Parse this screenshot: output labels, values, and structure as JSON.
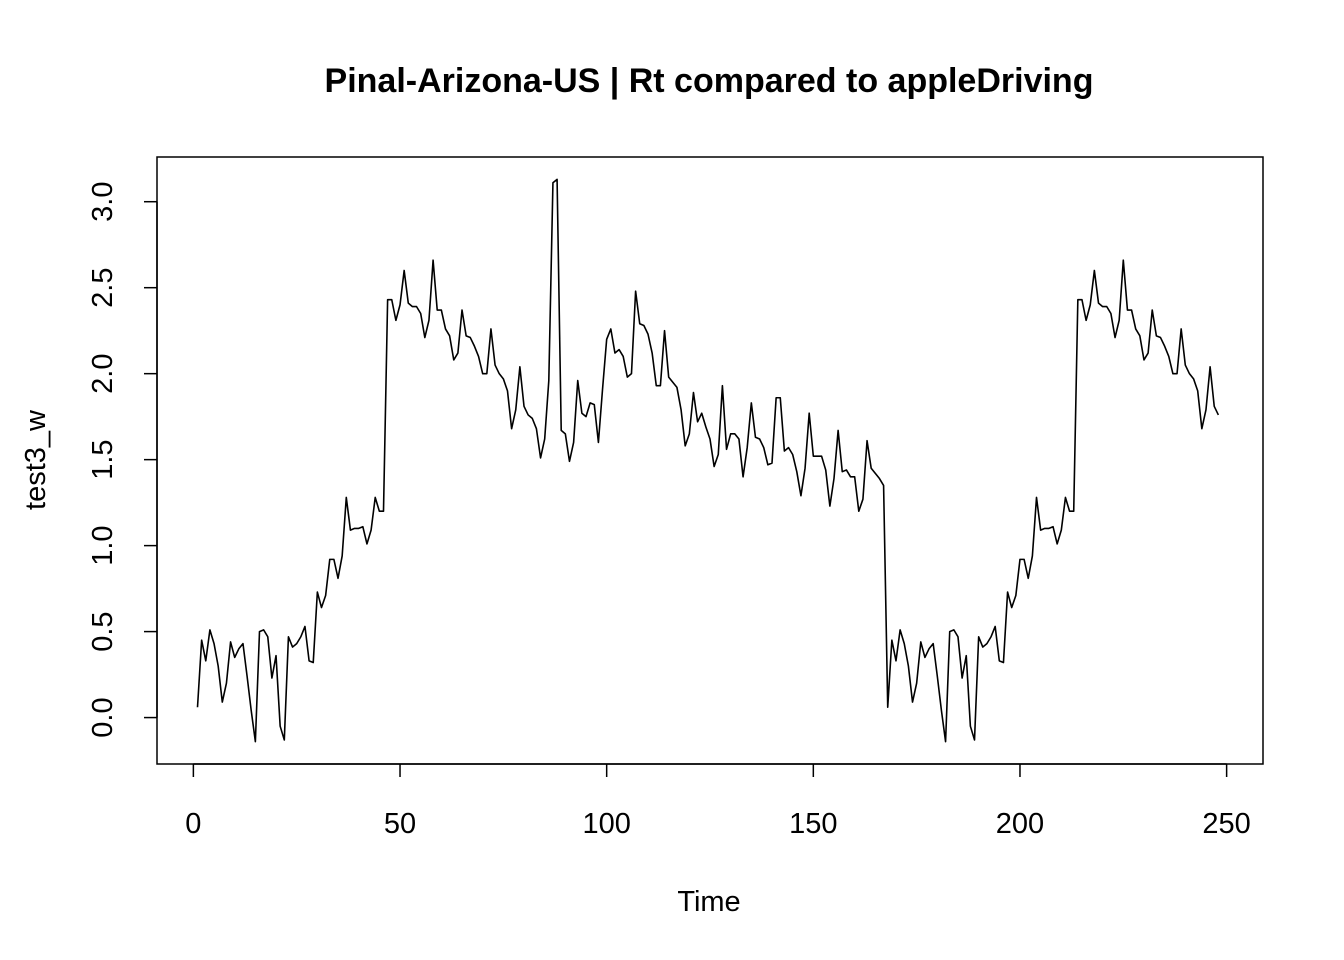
{
  "chart_data": {
    "type": "line",
    "title": "Pinal-Arizona-US | Rt compared to appleDriving",
    "xlabel": "Time",
    "ylabel": "test3_w",
    "xlim": [
      -8.8,
      258.8
    ],
    "ylim": [
      -0.27,
      3.26
    ],
    "xticks": [
      0,
      50,
      100,
      150,
      200,
      250
    ],
    "yticks": [
      0.0,
      0.5,
      1.0,
      1.5,
      2.0,
      2.5,
      3.0
    ],
    "xtick_labels": [
      "0",
      "50",
      "100",
      "150",
      "200",
      "250"
    ],
    "ytick_labels": [
      "0.0",
      "0.5",
      "1.0",
      "1.5",
      "2.0",
      "2.5",
      "3.0"
    ],
    "grid": false,
    "legend": "none",
    "color": "#000000",
    "series": [
      {
        "x": [
          1,
          2,
          3,
          4,
          5,
          6,
          7,
          8,
          9,
          10,
          11,
          12,
          13,
          14,
          15,
          16,
          17,
          18,
          19,
          20,
          21,
          22,
          23,
          24,
          25,
          26,
          27,
          28,
          29,
          30,
          31,
          32,
          33,
          34,
          35,
          36,
          37,
          38,
          39,
          40,
          41,
          42,
          43,
          44,
          45,
          46,
          47,
          48,
          49,
          50,
          51,
          52,
          53,
          54,
          55,
          56,
          57,
          58,
          59,
          60,
          61,
          62,
          63,
          64,
          65,
          66,
          67,
          68,
          69,
          70,
          71,
          72,
          73,
          74,
          75,
          76,
          77,
          78,
          79,
          80,
          81,
          82,
          83,
          84,
          85,
          86,
          87,
          88,
          89,
          90,
          91,
          92,
          93,
          94,
          95,
          96,
          97,
          98,
          99,
          100,
          101,
          102,
          103,
          104,
          105,
          106,
          107,
          108,
          109,
          110,
          111,
          112,
          113,
          114,
          115,
          116,
          117,
          118,
          119,
          120,
          121,
          122,
          123,
          124,
          125,
          126,
          127,
          128,
          129,
          130,
          131,
          132,
          133,
          134,
          135,
          136,
          137,
          138,
          139,
          140,
          141,
          142,
          143,
          144,
          145,
          146,
          147,
          148,
          149,
          150,
          151,
          152,
          153,
          154,
          155,
          156,
          157,
          158,
          159,
          160,
          161,
          162,
          163,
          164,
          165,
          166,
          167,
          168,
          169,
          170,
          171,
          172,
          173,
          174,
          175,
          176,
          177,
          178,
          179,
          180,
          181,
          182,
          183,
          184,
          185,
          186,
          187,
          188,
          189,
          190,
          191,
          192,
          193,
          194,
          195,
          196,
          197,
          198,
          199,
          200,
          201,
          202,
          203,
          204,
          205,
          206,
          207,
          208,
          209,
          210,
          211,
          212,
          213,
          214,
          215,
          216,
          217,
          218,
          219,
          220,
          221,
          222,
          223,
          224,
          225,
          226,
          227,
          228,
          229,
          230,
          231,
          232,
          233,
          234,
          235,
          236,
          237,
          238,
          239,
          240,
          241,
          242,
          243,
          244,
          245,
          246,
          247,
          248
        ],
        "values": [
          0.06,
          0.45,
          0.33,
          0.51,
          0.43,
          0.3,
          0.09,
          0.2,
          0.44,
          0.35,
          0.4,
          0.43,
          0.24,
          0.04,
          -0.14,
          0.5,
          0.51,
          0.47,
          0.23,
          0.36,
          -0.05,
          -0.13,
          0.47,
          0.41,
          0.43,
          0.47,
          0.53,
          0.33,
          0.32,
          0.73,
          0.64,
          0.71,
          0.92,
          0.92,
          0.81,
          0.94,
          1.28,
          1.09,
          1.1,
          1.1,
          1.11,
          1.01,
          1.09,
          1.28,
          1.2,
          1.2,
          2.43,
          2.43,
          2.31,
          2.4,
          2.6,
          2.41,
          2.39,
          2.39,
          2.35,
          2.21,
          2.31,
          2.66,
          2.37,
          2.37,
          2.26,
          2.22,
          2.08,
          2.12,
          2.37,
          2.22,
          2.21,
          2.16,
          2.1,
          2.0,
          2.0,
          2.26,
          2.05,
          2.0,
          1.97,
          1.9,
          1.68,
          1.79,
          2.04,
          1.81,
          1.76,
          1.74,
          1.68,
          1.51,
          1.62,
          1.96,
          3.11,
          3.13,
          1.67,
          1.65,
          1.49,
          1.6,
          1.96,
          1.77,
          1.75,
          1.83,
          1.82,
          1.6,
          1.91,
          2.2,
          2.26,
          2.12,
          2.14,
          2.1,
          1.98,
          2.0,
          2.48,
          2.29,
          2.28,
          2.23,
          2.12,
          1.93,
          1.93,
          2.25,
          1.98,
          1.95,
          1.92,
          1.79,
          1.58,
          1.65,
          1.89,
          1.72,
          1.77,
          1.69,
          1.62,
          1.46,
          1.53,
          1.93,
          1.56,
          1.65,
          1.65,
          1.62,
          1.4,
          1.57,
          1.83,
          1.63,
          1.62,
          1.57,
          1.47,
          1.48,
          1.86,
          1.86,
          1.55,
          1.57,
          1.53,
          1.43,
          1.29,
          1.45,
          1.77,
          1.52,
          1.52,
          1.52,
          1.44,
          1.23,
          1.39,
          1.67,
          1.43,
          1.44,
          1.4,
          1.4,
          1.2,
          1.27,
          1.61,
          1.45,
          1.42,
          1.39,
          1.35,
          0.06,
          0.45,
          0.33,
          0.51,
          0.43,
          0.3,
          0.09,
          0.2,
          0.44,
          0.35,
          0.4,
          0.43,
          0.24,
          0.04,
          -0.14,
          0.5,
          0.51,
          0.47,
          0.23,
          0.36,
          -0.05,
          -0.13,
          0.47,
          0.41,
          0.43,
          0.47,
          0.53,
          0.33,
          0.32,
          0.73,
          0.64,
          0.71,
          0.92,
          0.92,
          0.81,
          0.94,
          1.28,
          1.09,
          1.1,
          1.1,
          1.11,
          1.01,
          1.09,
          1.28,
          1.2,
          1.2,
          2.43,
          2.43,
          2.31,
          2.4,
          2.6,
          2.41,
          2.39,
          2.39,
          2.35,
          2.21,
          2.31,
          2.66,
          2.37,
          2.37,
          2.26,
          2.22,
          2.08,
          2.12,
          2.37,
          2.22,
          2.21,
          2.16,
          2.1,
          2.0,
          2.0,
          2.26,
          2.05,
          2.0,
          1.97,
          1.9,
          1.68,
          1.79,
          2.04,
          1.81,
          1.76
        ]
      }
    ]
  }
}
